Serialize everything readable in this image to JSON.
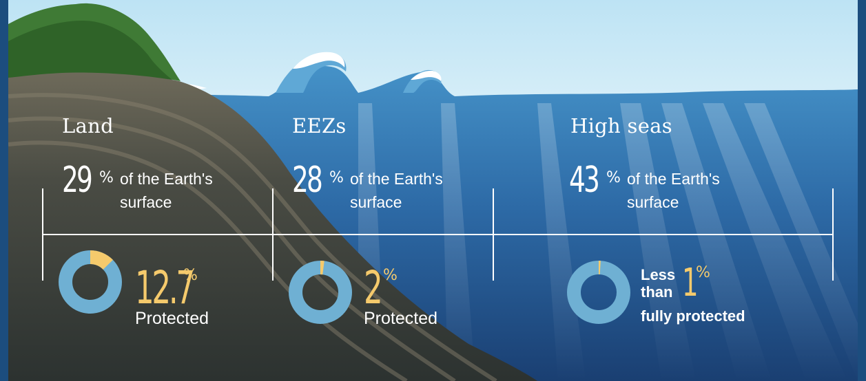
{
  "sections": [
    {
      "title": "Land",
      "share_value": "29",
      "share_unit": "%",
      "share_line1": "of the Earth's",
      "share_line2": "surface",
      "protected_value": "12.7",
      "protected_unit": "%",
      "protected_label": "Protected"
    },
    {
      "title": "EEZs",
      "share_value": "28",
      "share_unit": "%",
      "share_line1": "of the Earth's",
      "share_line2": "surface",
      "protected_value": "2",
      "protected_unit": "%",
      "protected_label": "Protected"
    },
    {
      "title": "High seas",
      "share_value": "43",
      "share_unit": "%",
      "share_line1": "of the Earth's",
      "share_line2": "surface",
      "protected_value": "1",
      "protected_unit": "%",
      "protected_pre1": "Less",
      "protected_pre2": "than",
      "protected_label": "fully protected"
    }
  ],
  "colors": {
    "sky": "#c9e8f5",
    "sea_light": "#3f8dc4",
    "sea_dark": "#1a3f72",
    "land": "#3a423e",
    "hills": "#3f7a35",
    "donut_fill": "#6fb0d3",
    "donut_accent": "#f5ca6c",
    "text": "#ffffff"
  },
  "chart_data": [
    {
      "type": "pie",
      "categories": [
        "Protected",
        "Unprotected"
      ],
      "values": [
        12.7,
        87.3
      ]
    },
    {
      "type": "pie",
      "categories": [
        "Protected",
        "Unprotected"
      ],
      "values": [
        2,
        98
      ]
    },
    {
      "type": "pie",
      "categories": [
        "Fully protected",
        "Other"
      ],
      "values": [
        1,
        99
      ]
    }
  ]
}
